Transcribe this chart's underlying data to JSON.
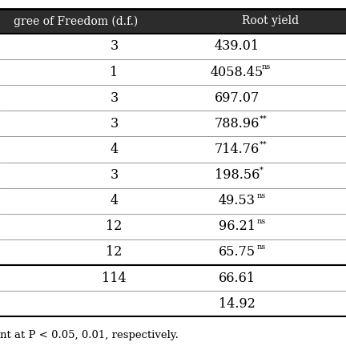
{
  "header_bg": "#2c2c2c",
  "header_text_color": "#ffffff",
  "body_bg": "#ffffff",
  "body_text_color": "#000000",
  "col1_header": "gree of Freedom (d.f.)",
  "col2_header": "Root yield",
  "rows": [
    {
      "df": "3",
      "value": "439.01",
      "sig": ""
    },
    {
      "df": "1",
      "value": "4058.45",
      "sig": "ns"
    },
    {
      "df": "3",
      "value": "697.07",
      "sig": ""
    },
    {
      "df": "3",
      "value": "788.96",
      "sig": "**"
    },
    {
      "df": "4",
      "value": "714.76",
      "sig": "**"
    },
    {
      "df": "3",
      "value": "198.56",
      "sig": "*"
    },
    {
      "df": "4",
      "value": "49.53",
      "sig": "ns"
    },
    {
      "df": "12",
      "value": "96.21",
      "sig": "ns"
    },
    {
      "df": "12",
      "value": "65.75",
      "sig": "ns"
    },
    {
      "df": "114",
      "value": "66.61",
      "sig": ""
    },
    {
      "df": "",
      "value": "14.92",
      "sig": ""
    }
  ],
  "footer_text": "nt at P < 0.05, 0.01, respectively.",
  "line_color": "#888888",
  "thick_line_color": "#000000"
}
